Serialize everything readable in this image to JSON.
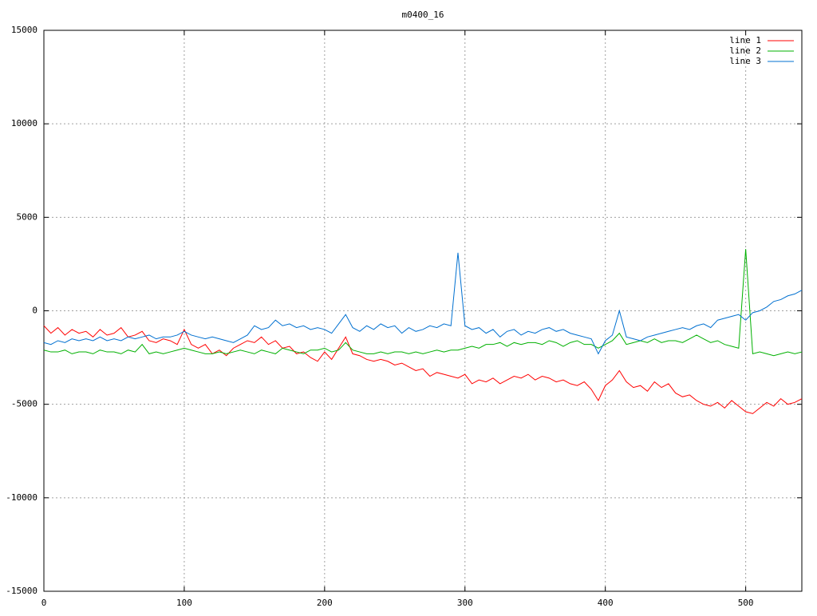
{
  "chart_data": {
    "type": "line",
    "title": "m0400_16",
    "x": [
      0,
      5,
      10,
      15,
      20,
      25,
      30,
      35,
      40,
      45,
      50,
      55,
      60,
      65,
      70,
      75,
      80,
      85,
      90,
      95,
      100,
      105,
      110,
      115,
      120,
      125,
      130,
      135,
      140,
      145,
      150,
      155,
      160,
      165,
      170,
      175,
      180,
      185,
      190,
      195,
      200,
      205,
      210,
      215,
      220,
      225,
      230,
      235,
      240,
      245,
      250,
      255,
      260,
      265,
      270,
      275,
      280,
      285,
      290,
      295,
      300,
      305,
      310,
      315,
      320,
      325,
      330,
      335,
      340,
      345,
      350,
      355,
      360,
      365,
      370,
      375,
      380,
      385,
      390,
      395,
      400,
      405,
      410,
      415,
      420,
      425,
      430,
      435,
      440,
      445,
      450,
      455,
      460,
      465,
      470,
      475,
      480,
      485,
      490,
      495,
      500,
      505,
      510,
      515,
      520,
      525,
      530,
      535,
      540
    ],
    "series": [
      {
        "name": "line 1",
        "color": "#ff0000",
        "values": [
          -800,
          -1200,
          -900,
          -1300,
          -1000,
          -1200,
          -1100,
          -1400,
          -1000,
          -1300,
          -1200,
          -900,
          -1400,
          -1300,
          -1100,
          -1600,
          -1700,
          -1500,
          -1600,
          -1800,
          -1000,
          -1800,
          -2000,
          -1800,
          -2300,
          -2100,
          -2400,
          -2000,
          -1800,
          -1600,
          -1700,
          -1400,
          -1800,
          -1600,
          -2000,
          -1900,
          -2300,
          -2200,
          -2500,
          -2700,
          -2200,
          -2600,
          -2000,
          -1400,
          -2300,
          -2400,
          -2600,
          -2700,
          -2600,
          -2700,
          -2900,
          -2800,
          -3000,
          -3200,
          -3100,
          -3500,
          -3300,
          -3400,
          -3500,
          -3600,
          -3400,
          -3900,
          -3700,
          -3800,
          -3600,
          -3900,
          -3700,
          -3500,
          -3600,
          -3400,
          -3700,
          -3500,
          -3600,
          -3800,
          -3700,
          -3900,
          -4000,
          -3800,
          -4200,
          -4800,
          -4000,
          -3700,
          -3200,
          -3800,
          -4100,
          -4000,
          -4300,
          -3800,
          -4100,
          -3900,
          -4400,
          -4600,
          -4500,
          -4800,
          -5000,
          -5100,
          -4900,
          -5200,
          -4800,
          -5100,
          -5400,
          -5500,
          -5200,
          -4900,
          -5100,
          -4700,
          -5000,
          -4900,
          -4700
        ]
      },
      {
        "name": "line 2",
        "color": "#00b000",
        "values": [
          -2100,
          -2200,
          -2200,
          -2100,
          -2300,
          -2200,
          -2200,
          -2300,
          -2100,
          -2200,
          -2200,
          -2300,
          -2100,
          -2200,
          -1800,
          -2300,
          -2200,
          -2300,
          -2200,
          -2100,
          -2000,
          -2100,
          -2200,
          -2300,
          -2300,
          -2200,
          -2300,
          -2200,
          -2100,
          -2200,
          -2300,
          -2100,
          -2200,
          -2300,
          -2000,
          -2100,
          -2200,
          -2300,
          -2100,
          -2100,
          -2000,
          -2200,
          -2100,
          -1700,
          -2100,
          -2200,
          -2300,
          -2300,
          -2200,
          -2300,
          -2200,
          -2200,
          -2300,
          -2200,
          -2300,
          -2200,
          -2100,
          -2200,
          -2100,
          -2100,
          -2000,
          -1900,
          -2000,
          -1800,
          -1800,
          -1700,
          -1900,
          -1700,
          -1800,
          -1700,
          -1700,
          -1800,
          -1600,
          -1700,
          -1900,
          -1700,
          -1600,
          -1800,
          -1800,
          -2000,
          -1800,
          -1600,
          -1200,
          -1800,
          -1700,
          -1600,
          -1700,
          -1500,
          -1700,
          -1600,
          -1600,
          -1700,
          -1500,
          -1300,
          -1500,
          -1700,
          -1600,
          -1800,
          -1900,
          -2000,
          3300,
          -2300,
          -2200,
          -2300,
          -2400,
          -2300,
          -2200,
          -2300,
          -2200
        ]
      },
      {
        "name": "line 3",
        "color": "#0070d0",
        "values": [
          -1700,
          -1800,
          -1600,
          -1700,
          -1500,
          -1600,
          -1500,
          -1600,
          -1400,
          -1600,
          -1500,
          -1600,
          -1400,
          -1500,
          -1400,
          -1300,
          -1500,
          -1400,
          -1400,
          -1300,
          -1100,
          -1300,
          -1400,
          -1500,
          -1400,
          -1500,
          -1600,
          -1700,
          -1500,
          -1300,
          -800,
          -1000,
          -900,
          -500,
          -800,
          -700,
          -900,
          -800,
          -1000,
          -900,
          -1000,
          -1200,
          -700,
          -200,
          -900,
          -1100,
          -800,
          -1000,
          -700,
          -900,
          -800,
          -1200,
          -900,
          -1100,
          -1000,
          -800,
          -900,
          -700,
          -800,
          3100,
          -800,
          -1000,
          -900,
          -1200,
          -1000,
          -1400,
          -1100,
          -1000,
          -1300,
          -1100,
          -1200,
          -1000,
          -900,
          -1100,
          -1000,
          -1200,
          -1300,
          -1400,
          -1500,
          -2300,
          -1600,
          -1300,
          0,
          -1400,
          -1500,
          -1600,
          -1400,
          -1300,
          -1200,
          -1100,
          -1000,
          -900,
          -1000,
          -800,
          -700,
          -900,
          -500,
          -400,
          -300,
          -200,
          -500,
          -100,
          0,
          200,
          500,
          600,
          800,
          900,
          1100
        ]
      }
    ],
    "xlim": [
      0,
      540
    ],
    "ylim": [
      -15000,
      15000
    ],
    "xticks": [
      0,
      100,
      200,
      300,
      400,
      500
    ],
    "yticks": [
      -15000,
      -10000,
      -5000,
      0,
      5000,
      10000,
      15000
    ],
    "grid": true,
    "legend": "top right"
  }
}
